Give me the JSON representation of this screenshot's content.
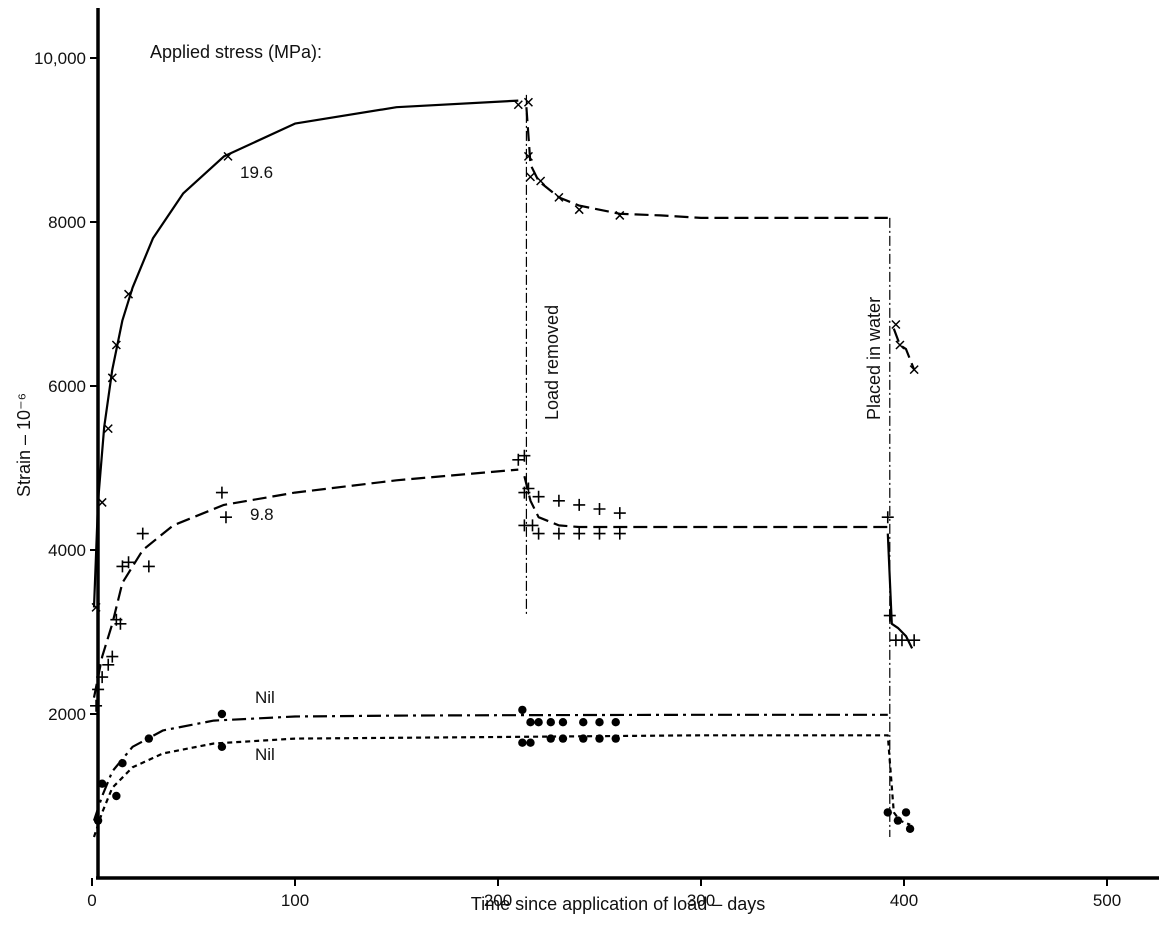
{
  "chart_data": {
    "type": "line",
    "title": "",
    "xlabel": "Time since application of load – days",
    "ylabel": "Strain – 10⁻⁶",
    "xlim": [
      0,
      520
    ],
    "ylim": [
      0,
      10500
    ],
    "x_ticks": [
      0,
      100,
      200,
      300,
      400,
      500
    ],
    "x_tick_labels": [
      "0",
      "100",
      "200",
      "300",
      "400",
      "500"
    ],
    "y_ticks": [
      2000,
      4000,
      6000,
      8000,
      10000
    ],
    "y_tick_labels": [
      "2000",
      "4000",
      "6000",
      "8000",
      "10,000"
    ],
    "grid": false,
    "legend_title": "Applied stress (MPa):",
    "series": [
      {
        "name": "19.6",
        "style": "solid",
        "x": [
          1,
          3,
          6,
          10,
          15,
          20,
          30,
          45,
          65,
          100,
          150,
          210
        ],
        "y": [
          3300,
          4600,
          5500,
          6200,
          6800,
          7200,
          7800,
          8350,
          8800,
          9200,
          9400,
          9480
        ],
        "markers": {
          "symbol": "x",
          "x": [
            2,
            5,
            8,
            10,
            12,
            18,
            67,
            210,
            215
          ],
          "y": [
            3300,
            4580,
            5480,
            6100,
            6500,
            7120,
            8800,
            9430,
            9460
          ]
        }
      },
      {
        "name": "19.6",
        "style": "dashed",
        "x": [
          214,
          216,
          220,
          230,
          240,
          260,
          280,
          300,
          392
        ],
        "y": [
          9400,
          8700,
          8500,
          8300,
          8200,
          8100,
          8080,
          8050,
          8050
        ],
        "markers": {
          "symbol": "x",
          "x": [
            215,
            216,
            221,
            230,
            240,
            260
          ],
          "y": [
            8800,
            8550,
            8500,
            8300,
            8150,
            8080
          ]
        }
      },
      {
        "name": "19.6",
        "style": "dashed",
        "x": [
          395,
          398,
          401,
          405
        ],
        "y": [
          6700,
          6500,
          6450,
          6200
        ],
        "markers": {
          "symbol": "x",
          "x": [
            396,
            398,
            405
          ],
          "y": [
            6750,
            6500,
            6200
          ]
        }
      },
      {
        "name": "9.8",
        "style": "dashed",
        "x": [
          1,
          5,
          10,
          15,
          25,
          40,
          65,
          100,
          150,
          210
        ],
        "y": [
          2200,
          2700,
          3100,
          3600,
          4000,
          4300,
          4550,
          4700,
          4850,
          4980
        ],
        "markers": {
          "symbol": "+",
          "x": [
            2,
            3,
            5,
            8,
            10,
            12,
            14,
            15,
            18,
            25,
            28,
            64,
            66,
            210,
            213
          ],
          "y": [
            2100,
            2300,
            2450,
            2600,
            2700,
            3150,
            3100,
            3800,
            3850,
            4200,
            3800,
            4700,
            4400,
            5100,
            5150
          ]
        }
      },
      {
        "name": "9.8",
        "style": "dashed",
        "x": [
          213,
          216,
          220,
          230,
          240,
          260,
          300,
          392
        ],
        "y": [
          4900,
          4600,
          4400,
          4300,
          4280,
          4280,
          4280,
          4280
        ],
        "markers": {
          "symbol": "+",
          "x": [
            213,
            215,
            217,
            220,
            230,
            240,
            250,
            260,
            213,
            220,
            230,
            240,
            250,
            260
          ],
          "y": [
            4700,
            4750,
            4300,
            4650,
            4600,
            4550,
            4500,
            4450,
            4300,
            4200,
            4200,
            4200,
            4200,
            4200
          ]
        }
      },
      {
        "name": "9.8",
        "style": "solid",
        "x": [
          392,
          394,
          397,
          401,
          404
        ],
        "y": [
          4200,
          3100,
          3050,
          2950,
          2800
        ],
        "markers": {
          "symbol": "+",
          "x": [
            392,
            393,
            396,
            399,
            405
          ],
          "y": [
            4400,
            3200,
            2900,
            2900,
            2900
          ]
        }
      },
      {
        "name": "Nil",
        "style": "dashdot",
        "x": [
          1,
          5,
          10,
          20,
          35,
          60,
          100,
          150,
          200,
          300,
          392
        ],
        "y": [
          700,
          1000,
          1300,
          1600,
          1800,
          1920,
          1970,
          1980,
          1985,
          1990,
          1990
        ],
        "markers": {
          "symbol": "dot",
          "x": [
            3,
            15,
            28,
            64,
            212,
            216,
            220,
            226,
            232,
            242,
            250,
            258
          ],
          "y": [
            700,
            1400,
            1700,
            2000,
            2050,
            1900,
            1900,
            1900,
            1900,
            1900,
            1900,
            1900
          ]
        }
      },
      {
        "name": "Nil",
        "style": "dotted",
        "x": [
          1,
          5,
          10,
          20,
          35,
          60,
          100,
          150,
          200,
          300,
          392,
          395,
          398,
          403
        ],
        "y": [
          500,
          800,
          1100,
          1350,
          1520,
          1640,
          1700,
          1710,
          1720,
          1740,
          1740,
          800,
          700,
          650
        ],
        "markers": {
          "symbol": "dot",
          "x": [
            5,
            12,
            64,
            212,
            216,
            226,
            232,
            242,
            250,
            258,
            392,
            397,
            401,
            403
          ],
          "y": [
            1150,
            1000,
            1600,
            1650,
            1650,
            1700,
            1700,
            1700,
            1700,
            1700,
            800,
            700,
            800,
            600
          ]
        }
      }
    ],
    "annotations": [
      {
        "text": "19.6",
        "at": "19.6 curve"
      },
      {
        "text": "9.8",
        "at": "9.8 curve"
      },
      {
        "text": "Nil",
        "at": "upper Nil curve"
      },
      {
        "text": "Nil",
        "at": "lower Nil curve"
      },
      {
        "text": "Load removed",
        "x": 214
      },
      {
        "text": "Placed in water",
        "x": 393
      }
    ],
    "style": {
      "line_color": "#000000",
      "background": "#ffffff"
    }
  }
}
